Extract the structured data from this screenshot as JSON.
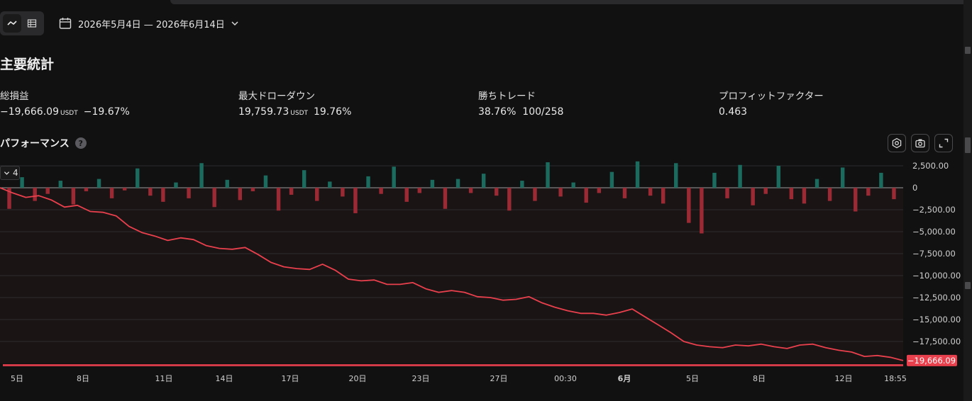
{
  "toolbar": {
    "view_modes": [
      {
        "name": "chart-view",
        "icon": "line-chart-icon",
        "active": true
      },
      {
        "name": "table-view",
        "icon": "table-icon",
        "active": false
      }
    ],
    "date_range": "2026年5月4日 — 2026年6月14日",
    "calendar_icon": "calendar-icon",
    "dropdown_icon": "chevron-down-icon"
  },
  "section_title": "主要統計",
  "stats": {
    "total_pnl": {
      "label": "総損益",
      "value": "−19,666.09",
      "unit": "USDT",
      "percent": "−19.67%"
    },
    "max_drawdown": {
      "label": "最大ドローダウン",
      "value": "19,759.73",
      "unit": "USDT",
      "percent": "19.76%"
    },
    "win_trades": {
      "label": "勝ちトレード",
      "percent": "38.76%",
      "count": "100/258"
    },
    "profit_factor": {
      "label": "プロフィットファクター",
      "value": "0.463"
    }
  },
  "performance": {
    "title": "パフォーマンス",
    "help_icon": "?",
    "tools": [
      "settings-icon",
      "camera-icon",
      "fullscreen-icon"
    ],
    "collapse_label": "4"
  },
  "colors": {
    "negative": "#f0535a",
    "positive_bar": "#1b6b5e",
    "negative_bar": "#9b2a34",
    "line": "#e8404c"
  },
  "chart_data": {
    "type": "line",
    "ylim": [
      -20000,
      2500
    ],
    "y_ticks": [
      "2,500.00",
      "0",
      "−2,500.00",
      "−5,000.00",
      "−7,500.00",
      "−10,000.00",
      "−12,500.00",
      "−15,000.00",
      "−17,500.00"
    ],
    "y_tick_values": [
      2500,
      0,
      -2500,
      -5000,
      -7500,
      -10000,
      -12500,
      -15000,
      -17500
    ],
    "x_labels": [
      "5日",
      "8日",
      "11日",
      "14日",
      "17日",
      "20日",
      "23日",
      "27日",
      "00:30",
      "6月",
      "5日",
      "8日",
      "12日",
      "18:55"
    ],
    "current_value_label": "−19,666.09",
    "series": [
      {
        "values": [
          0,
          -600,
          -1100,
          -900,
          -1400,
          -2200,
          -2000,
          -2700,
          -2800,
          -3200,
          -4400,
          -5100,
          -5500,
          -6000,
          -5700,
          -5900,
          -6600,
          -6900,
          -7000,
          -6800,
          -7600,
          -8500,
          -9000,
          -9200,
          -9300,
          -8700,
          -9400,
          -10400,
          -10600,
          -10500,
          -11000,
          -11000,
          -10800,
          -11500,
          -11900,
          -11700,
          -11900,
          -12400,
          -12500,
          -12800,
          -12700,
          -12400,
          -13100,
          -13600,
          -14000,
          -14300,
          -14300,
          -14500,
          -14200,
          -13800,
          -14700,
          -15600,
          -16500,
          -17500,
          -17900,
          -18100,
          -18200,
          -17900,
          -18000,
          -17800,
          -18100,
          -18300,
          -17900,
          -17800,
          -18200,
          -18500,
          -18700,
          -19200,
          -19100,
          -19300,
          -19666.09
        ]
      },
      {
        "type": "bar",
        "values": [
          -2400,
          1200,
          -1500,
          -700,
          800,
          -1900,
          -400,
          1000,
          -1200,
          -300,
          2200,
          -900,
          -1600,
          600,
          -1200,
          2800,
          -2200,
          900,
          -1400,
          -400,
          1400,
          -2600,
          -800,
          2000,
          -1500,
          700,
          -1000,
          -2900,
          1300,
          -700,
          2400,
          -1600,
          -600,
          900,
          -2400,
          1000,
          -600,
          1600,
          -900,
          -2600,
          800,
          -1500,
          2900,
          -1000,
          600,
          -1700,
          -600,
          1800,
          -1200,
          3000,
          -900,
          -1800,
          2800,
          -4000,
          -5200,
          1700,
          -1200,
          2600,
          -2000,
          -700,
          2500,
          -1300,
          -1800,
          1000,
          -1500,
          2300,
          -2700,
          -900,
          1700,
          -1300
        ]
      }
    ]
  }
}
